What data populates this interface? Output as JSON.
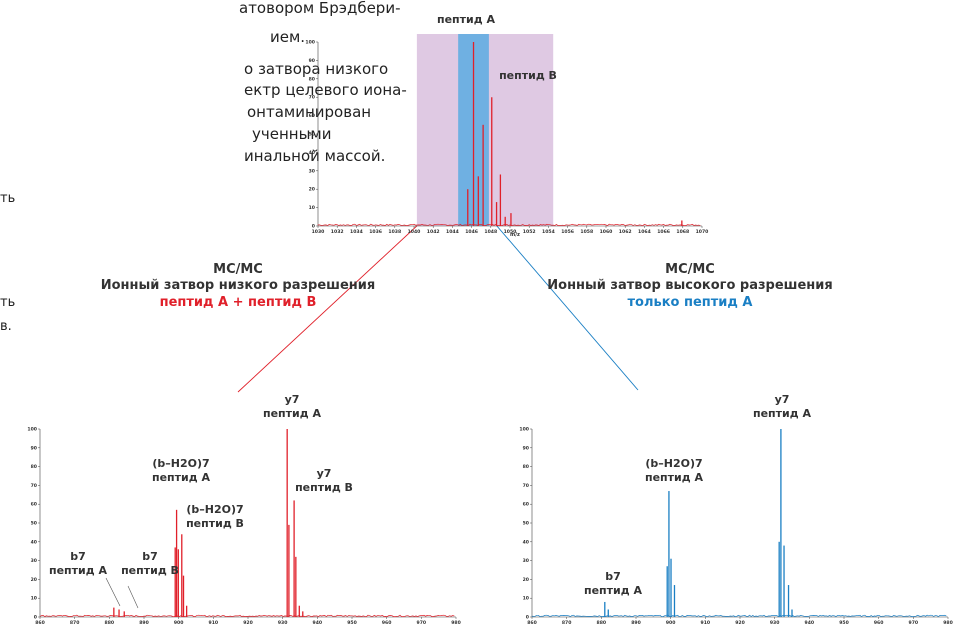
{
  "left_text": {
    "lines": [
      "атовором Брэдбери-",
      "ием.",
      "о затвора низкого",
      "ектр целевого иона-",
      "онтаминирован",
      "ученными",
      "инальной массой.",
      "ть",
      "ть",
      "в."
    ]
  },
  "top_spectrum": {
    "label_a": "пептид A",
    "label_b": "пептид B",
    "axis_unit": "m/z",
    "colors": {
      "line": "#e0202a",
      "low_window": "#dfc9e3",
      "high_window": "#6fb0e2"
    }
  },
  "left_panel": {
    "title": "МС/МС",
    "subtitle": "Ионный затвор низкого разрешения",
    "result": "пептид A + пептид B",
    "peaks": {
      "y7a": [
        "y7",
        "пептид A"
      ],
      "bh2o_a": [
        "(b–H2O)7",
        "пептид A"
      ],
      "y7b": [
        "y7",
        "пептид B"
      ],
      "bh2o_b": [
        "(b–H2O)7",
        "пептид B"
      ],
      "b7a": [
        "b7",
        "пептид A"
      ],
      "b7b": [
        "b7",
        "пептид B"
      ]
    },
    "color": "#e0202a"
  },
  "right_panel": {
    "title": "МС/МС",
    "subtitle": "Ионный затвор высокого разрешения",
    "result": "только пептид A",
    "peaks": {
      "y7a": [
        "y7",
        "пептид A"
      ],
      "bh2o_a": [
        "(b–H2O)7",
        "пептид A"
      ],
      "b7a": [
        "b7",
        "пептид A"
      ]
    },
    "color": "#1a7fc4"
  },
  "chart_data": [
    {
      "type": "line",
      "xlabel": "m/z",
      "xlim": [
        1030,
        1070
      ],
      "ylim": [
        0,
        100
      ],
      "x_ticks": [
        1030,
        1032,
        1034,
        1036,
        1038,
        1040,
        1042,
        1044,
        1046,
        1048,
        1050,
        1052,
        1054,
        1056,
        1058,
        1060,
        1062,
        1064,
        1066,
        1068,
        1070
      ],
      "y_ticks": [
        0,
        10,
        20,
        30,
        40,
        50,
        60,
        70,
        80,
        90,
        100
      ],
      "low_res_window": [
        1040.3,
        1054.5
      ],
      "high_res_window": [
        1044.6,
        1047.8
      ],
      "series": [
        {
          "name": "",
          "peaks": [
            [
              1045.6,
              20
            ],
            [
              1046.2,
              100
            ],
            [
              1046.7,
              27
            ],
            [
              1047.2,
              55
            ],
            [
              1048.1,
              70
            ],
            [
              1048.6,
              13
            ],
            [
              1049.0,
              28
            ],
            [
              1049.5,
              5
            ],
            [
              1050.1,
              7
            ],
            [
              1067.9,
              3
            ]
          ]
        }
      ]
    },
    {
      "type": "line",
      "xlim": [
        860,
        980
      ],
      "ylim": [
        0,
        100
      ],
      "x_ticks": [
        860,
        870,
        880,
        890,
        900,
        910,
        920,
        930,
        940,
        950,
        960,
        970,
        980
      ],
      "y_ticks": [
        0,
        10,
        20,
        30,
        40,
        50,
        60,
        70,
        80,
        90,
        100
      ],
      "series": [
        {
          "name": "",
          "peaks": [
            [
              881.3,
              5
            ],
            [
              882.8,
              4
            ],
            [
              884.3,
              3
            ],
            [
              899.0,
              37
            ],
            [
              899.4,
              57
            ],
            [
              899.9,
              36
            ],
            [
              900.9,
              44
            ],
            [
              901.4,
              22
            ],
            [
              902.3,
              6
            ],
            [
              931.3,
              100
            ],
            [
              931.8,
              49
            ],
            [
              933.3,
              62
            ],
            [
              933.8,
              32
            ],
            [
              934.8,
              6
            ],
            [
              935.8,
              3
            ]
          ]
        }
      ]
    },
    {
      "type": "line",
      "xlim": [
        860,
        980
      ],
      "ylim": [
        0,
        100
      ],
      "x_ticks": [
        860,
        870,
        880,
        890,
        900,
        910,
        920,
        930,
        940,
        950,
        960,
        970,
        980
      ],
      "y_ticks": [
        0,
        10,
        20,
        30,
        40,
        50,
        60,
        70,
        80,
        90,
        100
      ],
      "series": [
        {
          "name": "",
          "peaks": [
            [
              881.0,
              8
            ],
            [
              882.0,
              4
            ],
            [
              899.0,
              27
            ],
            [
              899.5,
              67
            ],
            [
              900.1,
              31
            ],
            [
              901.1,
              17
            ],
            [
              931.3,
              40
            ],
            [
              931.8,
              100
            ],
            [
              932.7,
              38
            ],
            [
              934.0,
              17
            ],
            [
              935.0,
              4
            ]
          ]
        }
      ]
    }
  ]
}
